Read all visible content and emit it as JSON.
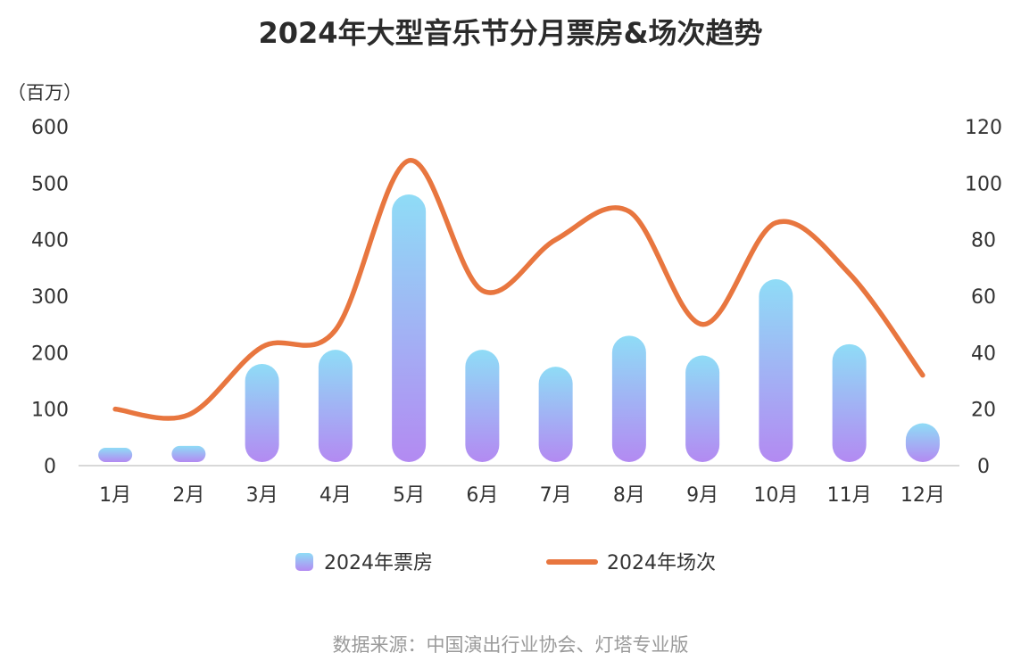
{
  "title": "2024年大型音乐节分月票房&场次趋势",
  "unit_label": "（百万）",
  "source": "数据来源：中国演出行业协会、灯塔专业版",
  "colors": {
    "bar_top": "#8fdcf6",
    "bar_bottom": "#b38af2",
    "line": "#e8763f",
    "axis": "#cccccc"
  },
  "chart_data": {
    "type": "bar",
    "categories": [
      "1月",
      "2月",
      "3月",
      "4月",
      "5月",
      "6月",
      "7月",
      "8月",
      "9月",
      "10月",
      "11月",
      "12月"
    ],
    "series": [
      {
        "name": "2024年票房",
        "type": "bar",
        "axis": "left",
        "values": [
          30,
          35,
          180,
          205,
          480,
          205,
          175,
          230,
          195,
          330,
          215,
          75
        ]
      },
      {
        "name": "2024年场次",
        "type": "line",
        "axis": "right",
        "values": [
          20,
          18,
          42,
          48,
          108,
          62,
          80,
          90,
          50,
          86,
          68,
          32
        ]
      }
    ],
    "y_left": {
      "min": 0,
      "max": 600,
      "ticks": [
        0,
        100,
        200,
        300,
        400,
        500,
        600
      ]
    },
    "y_right": {
      "min": 0,
      "max": 120,
      "ticks": [
        0,
        20,
        40,
        60,
        80,
        100,
        120
      ]
    },
    "legend": {
      "placement": "bottom",
      "items": [
        "2024年票房",
        "2024年场次"
      ]
    }
  }
}
